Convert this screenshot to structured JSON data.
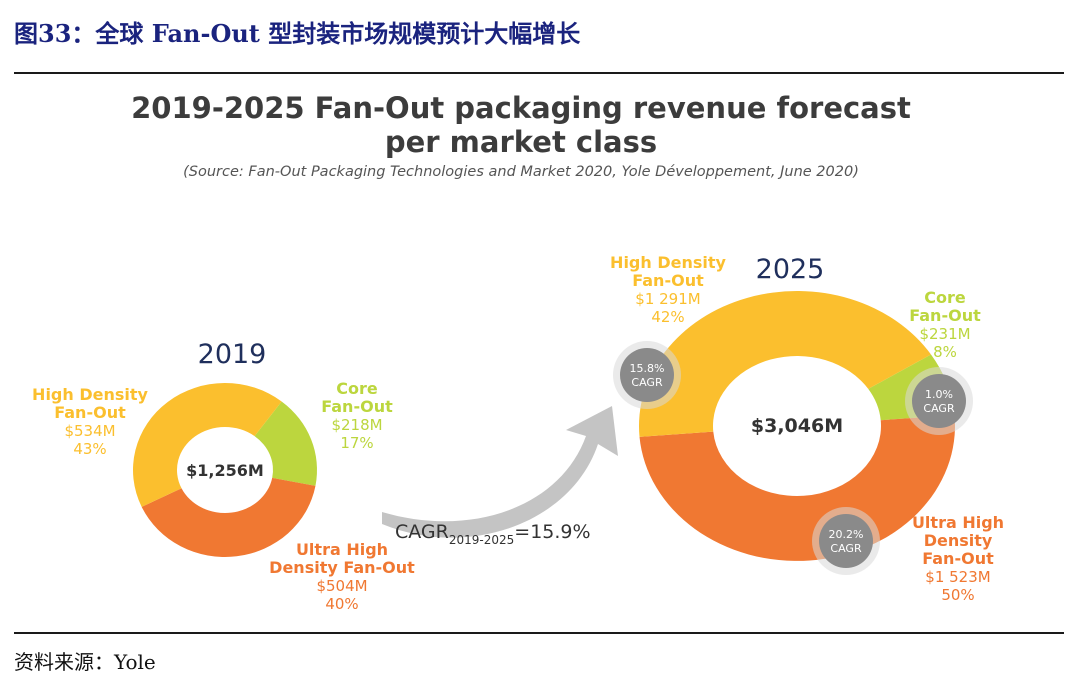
{
  "figure": {
    "title": "图33：全球 Fan-Out 型封装市场规模预计大幅增长",
    "source": "资料来源：Yole"
  },
  "colors": {
    "high_density": "#fbbf2e",
    "core": "#bcd63e",
    "ultra_high": "#f07832",
    "badge": "#8a8a8a",
    "arrow": "#c4c4c4",
    "year_text": "#1f2f5c"
  },
  "chart_data": {
    "type": "donut",
    "title_line1": "2019-2025 Fan-Out packaging revenue forecast",
    "title_line2": "per market class",
    "subtitle": "(Source: Fan-Out Packaging Technologies and Market 2020, Yole Développement, June 2020)",
    "unit": "$M",
    "overall_cagr": {
      "label_main": "CAGR",
      "label_sub": "2019-2025",
      "label_value": "=15.9%",
      "value": 15.9
    },
    "charts": [
      {
        "year": "2019",
        "total_label": "$1,256M",
        "total": 1256,
        "segments": [
          {
            "key": "high_density",
            "label_lines": [
              "High Density",
              "Fan-Out"
            ],
            "value": 534,
            "value_label": "$534M",
            "percent": 43,
            "percent_label": "43%"
          },
          {
            "key": "core",
            "label_lines": [
              "Core",
              "Fan-Out"
            ],
            "value": 218,
            "value_label": "$218M",
            "percent": 17,
            "percent_label": "17%"
          },
          {
            "key": "ultra_high",
            "label_lines": [
              "Ultra High",
              "Density Fan-Out"
            ],
            "value": 504,
            "value_label": "$504M",
            "percent": 40,
            "percent_label": "40%"
          }
        ]
      },
      {
        "year": "2025",
        "total_label": "$3,046M",
        "total": 3046,
        "segments": [
          {
            "key": "high_density",
            "label_lines": [
              "High Density",
              "Fan-Out"
            ],
            "value": 1291,
            "value_label": "$1 291M",
            "percent": 42,
            "percent_label": "42%",
            "cagr_label": [
              "15.8%",
              "CAGR"
            ],
            "cagr": 15.8
          },
          {
            "key": "core",
            "label_lines": [
              "Core",
              "Fan-Out"
            ],
            "value": 231,
            "value_label": "$231M",
            "percent": 8,
            "percent_label": "8%",
            "cagr_label": [
              "1.0%",
              "CAGR"
            ],
            "cagr": 1.0
          },
          {
            "key": "ultra_high",
            "label_lines": [
              "Ultra High",
              "Density",
              "Fan-Out"
            ],
            "value": 1523,
            "value_label": "$1 523M",
            "percent": 50,
            "percent_label": "50%",
            "cagr_label": [
              "20.2%",
              "CAGR"
            ],
            "cagr": 20.2
          }
        ]
      }
    ]
  }
}
